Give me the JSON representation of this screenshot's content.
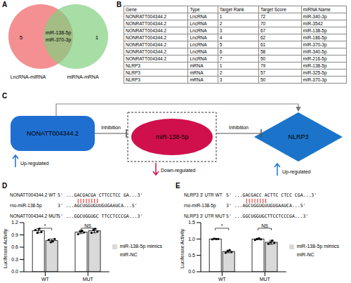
{
  "panel_labels": [
    "A",
    "B",
    "C",
    "D",
    "E"
  ],
  "venn": {
    "sets": [
      {
        "label": "LncRNA-miRNA",
        "only": 5,
        "color": "#f27c7f"
      },
      {
        "label": "miRNA-mRNA",
        "only": 1,
        "color": "#80d080"
      }
    ],
    "shared": [
      "miR-138-5p",
      "miR-370-3p"
    ]
  },
  "table": {
    "header": [
      "Gene",
      "Type",
      "Target Rank",
      "Target Score",
      "miRNA Name"
    ],
    "rows": [
      [
        "NONRATT004344.2",
        "LncRNA",
        1,
        72,
        "miR-340-3p"
      ],
      [
        "NONRATT004344.2",
        "LncRNA",
        2,
        70,
        "miR-3542"
      ],
      [
        "NONRATT004344.2",
        "LncRNA",
        3,
        67,
        "miR-138-5p"
      ],
      [
        "NONRATT004344.2",
        "LncRNA",
        4,
        62,
        "miR-186-5p"
      ],
      [
        "NONRATT004344.2",
        "LncRNA",
        5,
        61,
        "miR-370-3p"
      ],
      [
        "NONRATT004344.2",
        "LncRNA",
        6,
        58,
        "miR-340-5p"
      ],
      [
        "NONRATT004344.2",
        "LncRNA",
        7,
        50,
        "miR-216-5p"
      ],
      [
        "NLRP3",
        "mRNA",
        1,
        79,
        "miR-138-5p"
      ],
      [
        "NLRP3",
        "mRNA",
        2,
        57,
        "miR-325-5p"
      ],
      [
        "NLRP3",
        "mRNA",
        3,
        50,
        "miR-370-3p"
      ]
    ]
  },
  "diagram": {
    "nodes": [
      {
        "label": "NONATT004344.2",
        "status": "Up-regulated",
        "color": "#1f6fd1"
      },
      {
        "label": "miR-138-5p",
        "status": "Down-regulated",
        "color": "#d0104c"
      },
      {
        "label": "NLRP3",
        "status": "Up-regulated",
        "color": "#1b74c9"
      }
    ],
    "edges": [
      "Inhibition",
      "Inhibition"
    ]
  },
  "chart_data": [
    {
      "type": "bar",
      "sequences": [
        {
          "name": "NONATT004344.2 WT",
          "text": "5' ...GACGACGA CTTCCTCC GA...3'"
        },
        {
          "name": "rno-miR-138-5p",
          "text": "3' ...AGCUGGUGUUGUGAAUCA...5'"
        },
        {
          "name": "NONATT004344.2 MUT",
          "text": "5' ...GGCUGGUGC TTCCTCCCGA...3'"
        }
      ],
      "y_label": "Luciferase Activity",
      "categories": [
        "WT",
        "MUT"
      ],
      "ylim": [
        0,
        1.2
      ],
      "yticks": [
        {
          "value": 0,
          "label": "0.0"
        },
        0.3,
        0.6,
        0.9,
        1.2
      ],
      "annotations": [
        "*",
        "NS"
      ],
      "series": [
        {
          "name": "miR-NC",
          "color": "#ffffff",
          "values": [
            1.0,
            0.97
          ],
          "errors": [
            0.05,
            0.04
          ],
          "points": [
            [
              1.02,
              0.95,
              1.05,
              0.97
            ],
            [
              0.92,
              0.98,
              1.0,
              0.96
            ]
          ]
        },
        {
          "name": "miR-138-5p mimics",
          "color": "#d9d9d9",
          "values": [
            0.76,
            1.0
          ],
          "errors": [
            0.04,
            0.05
          ],
          "points": [
            [
              0.78,
              0.72,
              0.75,
              0.8
            ],
            [
              0.95,
              1.02,
              1.05,
              0.98
            ]
          ]
        }
      ]
    },
    {
      "type": "bar",
      "sequences": [
        {
          "name": "NLRP3 3' UTR WT",
          "text": "5' ...GACGACC ACTTC CTCC CGA...3'"
        },
        {
          "name": "rno-miR-138-5p",
          "text": "3' ...AGCUGGUGUUGUGAAUCA...5'"
        },
        {
          "name": "NLRP3 3' UTR MUT",
          "text": "5' ...GGCUGGUGCTTCCTCCCGA...3'"
        }
      ],
      "y_label": "Luciferase Activity",
      "categories": [
        "WT",
        "MUT"
      ],
      "ylim": [
        0,
        1.5
      ],
      "yticks": [
        {
          "value": 0,
          "label": "0.0"
        },
        0.5,
        {
          "value": 1,
          "label": "1.0"
        },
        1.5
      ],
      "annotations": [
        "*",
        "NS"
      ],
      "series": [
        {
          "name": "miR-NC",
          "color": "#ffffff",
          "values": [
            1.0,
            1.0
          ],
          "errors": [
            0.01,
            0.02
          ],
          "points": [
            [
              0.99,
              1.01,
              1.0,
              1.0
            ],
            [
              0.97,
              1.0,
              1.02,
              0.99
            ]
          ]
        },
        {
          "name": "miR-138-5p mimics",
          "color": "#d9d9d9",
          "values": [
            0.62,
            0.9
          ],
          "errors": [
            0.04,
            0.06
          ],
          "points": [
            [
              0.58,
              0.63,
              0.66,
              0.6
            ],
            [
              0.85,
              0.9,
              0.95,
              0.88
            ]
          ]
        }
      ]
    }
  ]
}
